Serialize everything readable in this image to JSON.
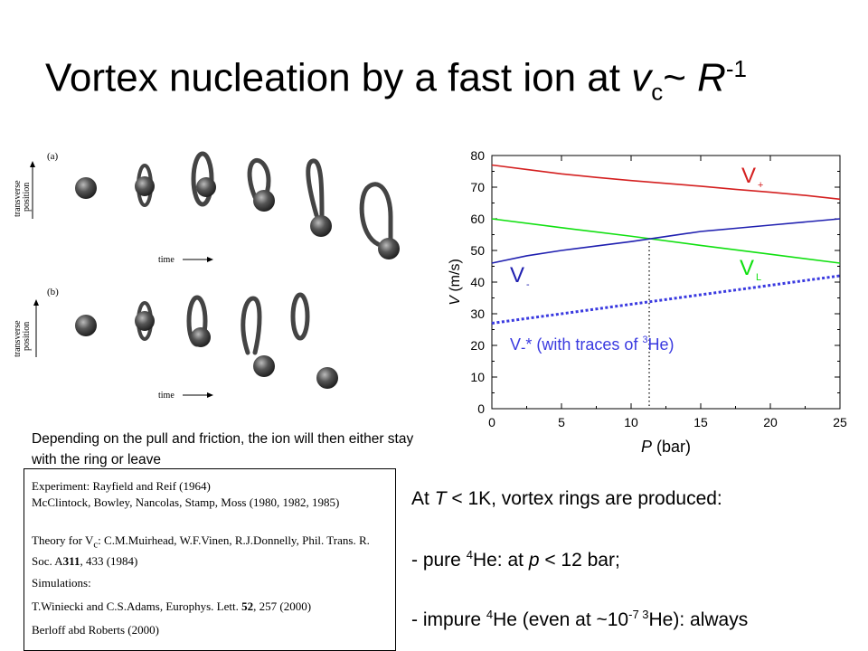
{
  "slide": {
    "title": "Vortex nucleation by a fast ion at v_c~ R^-1",
    "title_parts": {
      "main": "Vortex nucleation by a fast ion at ",
      "v": "v",
      "sub": "c",
      "tilde": "~ ",
      "R": "R",
      "sup": "-1"
    }
  },
  "simulation": {
    "panel_a_label": "(a)",
    "panel_b_label": "(b)",
    "axis_label_vertical": [
      "transverse",
      "position"
    ],
    "axis_label_time": "time"
  },
  "caption": "Depending on the pull and friction, the ion will then either stay with the ring or leave",
  "references": {
    "experiment": "Experiment: Rayfield and Reif (1964)",
    "experiment_2": "McClintock, Bowley, Nancolas, Stamp, Moss (1980, 1982, 1985)",
    "theory_prefix": "Theory for V",
    "theory_sub": "c",
    "theory_rest": ": C.M.Muirhead, W.F.Vinen, R.J.Donnelly, Phil. Trans. R. Soc. A",
    "theory_bold": "311",
    "theory_end": ", 433 (1984)",
    "simulations": "Simulations:",
    "sim_1_pre": "T.Winiecki  and C.S.Adams, Europhys. Lett. ",
    "sim_1_bold": "52",
    "sim_1_end": ", 257 (2000)",
    "sim_2": "Berloff abd Roberts (2000)"
  },
  "notes": {
    "line1_a": "At ",
    "line1_T": "T",
    "line1_b": " < 1K, vortex rings are produced:",
    "line2_a": "- pure ",
    "line2_sup": "4",
    "line2_b": "He: at ",
    "line2_p": "p",
    "line2_c": " < 12 bar;",
    "line3_a": "- impure ",
    "line3_sup1": "4",
    "line3_b": "He (even at ~10",
    "line3_sup2": "-7",
    "line3_sup3": " 3",
    "line3_c": "He): always"
  },
  "chart_data": {
    "type": "line",
    "xlabel": "P (bar)",
    "ylabel": "V (m/s)",
    "xlim": [
      0,
      25
    ],
    "ylim": [
      0,
      80
    ],
    "xticks": [
      0,
      5,
      10,
      15,
      20,
      25
    ],
    "yticks": [
      0,
      10,
      20,
      30,
      40,
      50,
      60,
      70,
      80
    ],
    "grid": false,
    "colors": {
      "red": "#d42020",
      "green": "#10e010",
      "blue": "#2020b0",
      "dotted_blue": "#3a3ae0"
    },
    "series": [
      {
        "name": "V+",
        "label_main": "V",
        "label_sub": "+",
        "color": "#d42020",
        "style": "solid",
        "x": [
          0,
          2.5,
          5,
          7.5,
          10,
          12.5,
          15,
          17.5,
          20,
          22.5,
          25
        ],
        "y": [
          77,
          75.6,
          74.2,
          73.1,
          72.1,
          71.2,
          70.3,
          69.3,
          68.4,
          67.4,
          66.2
        ]
      },
      {
        "name": "VL",
        "label_main": "V",
        "label_sub": "L",
        "color": "#10e010",
        "style": "solid",
        "x": [
          0,
          5,
          10,
          15,
          20,
          25
        ],
        "y": [
          60,
          57.2,
          54.5,
          51.6,
          48.8,
          46
        ]
      },
      {
        "name": "V-",
        "label_main": "V",
        "label_sub": "-",
        "color": "#2020b0",
        "style": "solid",
        "x": [
          0,
          2.5,
          5,
          7.5,
          10,
          12.5,
          15,
          17.5,
          20,
          22.5,
          25
        ],
        "y": [
          46,
          48.3,
          50,
          51.4,
          52.8,
          54.4,
          56,
          57,
          58,
          59,
          60
        ]
      },
      {
        "name": "V-* (with traces of 3He)",
        "label_main": "V",
        "label_sub": "-",
        "label_rest": "* (with traces of ",
        "label_sup": "3",
        "label_end": "He)",
        "color": "#3a3ae0",
        "style": "dotted",
        "x": [
          0,
          25
        ],
        "y": [
          27,
          42
        ]
      }
    ],
    "annotations": {
      "crossing_vertical_x": 11.3
    }
  }
}
